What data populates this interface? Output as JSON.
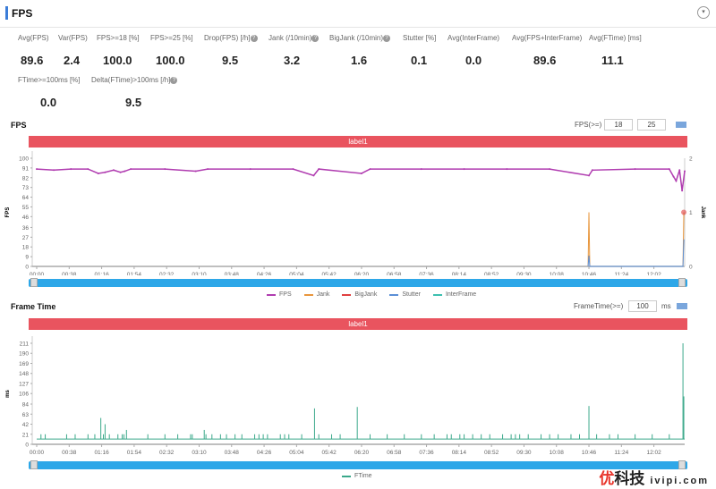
{
  "header": {
    "title": "FPS"
  },
  "stats": [
    {
      "label": "Avg(FPS)",
      "value": "89.6"
    },
    {
      "label": "Var(FPS)",
      "value": "2.4"
    },
    {
      "label": "FPS>=18 [%]",
      "value": "100.0"
    },
    {
      "label": "FPS>=25 [%]",
      "value": "100.0"
    },
    {
      "label": "Drop(FPS) [/h]",
      "value": "9.5",
      "help": true
    },
    {
      "label": "Jank (/10min)",
      "value": "3.2",
      "help": true
    },
    {
      "label": "BigJank (/10min)",
      "value": "1.6",
      "help": true
    },
    {
      "label": "Stutter [%]",
      "value": "0.1"
    },
    {
      "label": "Avg(InterFrame)",
      "value": "0.0"
    },
    {
      "label": "Avg(FPS+InterFrame)",
      "value": "89.6"
    },
    {
      "label": "Avg(FTime) [ms]",
      "value": "11.1"
    },
    {
      "label": "FTime>=100ms [%]",
      "value": "0.0"
    },
    {
      "label": "Delta(FTime)>100ms [/h]",
      "value": "9.5",
      "help": true
    }
  ],
  "fps_panel": {
    "title": "FPS",
    "threshold_label": "FPS(>=)",
    "threshold1": "18",
    "threshold2": "25",
    "band_label": "label1"
  },
  "ft_panel": {
    "title": "Frame Time",
    "threshold_label": "FrameTime(>=)",
    "threshold": "100",
    "unit": "ms",
    "band_label": "label1"
  },
  "watermark": {
    "cn": "优科技",
    "en": "ivipi.com"
  },
  "colors": {
    "fps": "#b03cb0",
    "jank": "#e8963c",
    "bigjank": "#e04040",
    "stutter": "#5b8fd6",
    "interframe": "#3cc0b0",
    "ftime": "#3aa88a",
    "band": "#e9545f",
    "slider": "#2ea7e8"
  },
  "chart_data": [
    {
      "type": "line",
      "ylabel": "FPS",
      "y2label": "Jank",
      "ylim": [
        0,
        100
      ],
      "y2lim": [
        0,
        2
      ],
      "yticks": [
        0,
        9,
        18,
        27,
        36,
        46,
        55,
        64,
        73,
        82,
        91,
        100
      ],
      "y2ticks": [
        0,
        1,
        2
      ],
      "xticks": [
        "00:00",
        "00:38",
        "01:16",
        "01:54",
        "02:32",
        "03:10",
        "03:48",
        "04:26",
        "05:04",
        "05:42",
        "06:20",
        "06:58",
        "07:36",
        "08:14",
        "08:52",
        "09:30",
        "10:08",
        "10:46",
        "11:24",
        "12:02"
      ],
      "xrange_sec": [
        0,
        758
      ],
      "series": [
        {
          "name": "FPS",
          "points": [
            [
              0,
              90
            ],
            [
              20,
              89
            ],
            [
              40,
              90
            ],
            [
              60,
              90
            ],
            [
              72,
              86
            ],
            [
              80,
              87
            ],
            [
              90,
              89
            ],
            [
              98,
              87
            ],
            [
              103,
              88
            ],
            [
              110,
              90
            ],
            [
              150,
              90
            ],
            [
              186,
              88
            ],
            [
              200,
              90
            ],
            [
              250,
              90
            ],
            [
              300,
              90
            ],
            [
              324,
              84
            ],
            [
              330,
              90
            ],
            [
              380,
              86
            ],
            [
              390,
              90
            ],
            [
              450,
              90
            ],
            [
              500,
              90
            ],
            [
              550,
              90
            ],
            [
              600,
              90
            ],
            [
              646,
              84
            ],
            [
              650,
              89
            ],
            [
              700,
              90
            ],
            [
              740,
              90
            ],
            [
              745,
              83
            ],
            [
              748,
              79
            ],
            [
              752,
              89
            ],
            [
              755,
              70
            ],
            [
              758,
              88
            ]
          ]
        },
        {
          "name": "Jank",
          "points": [
            [
              645,
              0
            ],
            [
              646,
              1
            ],
            [
              647,
              0
            ],
            [
              756,
              0
            ],
            [
              757,
              1
            ]
          ]
        },
        {
          "name": "BigJank",
          "points": []
        },
        {
          "name": "Stutter",
          "points": [
            [
              645,
              0
            ],
            [
              646,
              0.2
            ],
            [
              647,
              0
            ],
            [
              756,
              0
            ],
            [
              757,
              0.5
            ]
          ]
        },
        {
          "name": "InterFrame",
          "points": []
        }
      ]
    },
    {
      "type": "bar",
      "ylabel": "ms",
      "ylim": [
        0,
        211
      ],
      "yticks": [
        0,
        21,
        42,
        63,
        84,
        106,
        127,
        148,
        169,
        190,
        211
      ],
      "xticks": [
        "00:00",
        "00:38",
        "01:16",
        "01:54",
        "02:32",
        "03:10",
        "03:48",
        "04:26",
        "05:04",
        "05:42",
        "06:20",
        "06:58",
        "07:36",
        "08:14",
        "08:52",
        "09:30",
        "10:08",
        "10:46",
        "11:24",
        "12:02"
      ],
      "xrange_sec": [
        0,
        758
      ],
      "baseline": 11,
      "series": [
        {
          "name": "FTime",
          "points": [
            [
              5,
              21
            ],
            [
              10,
              21
            ],
            [
              35,
              21
            ],
            [
              45,
              21
            ],
            [
              60,
              21
            ],
            [
              68,
              21
            ],
            [
              75,
              55
            ],
            [
              78,
              21
            ],
            [
              80,
              42
            ],
            [
              85,
              21
            ],
            [
              95,
              21
            ],
            [
              100,
              21
            ],
            [
              102,
              21
            ],
            [
              105,
              30
            ],
            [
              130,
              21
            ],
            [
              150,
              21
            ],
            [
              165,
              21
            ],
            [
              180,
              21
            ],
            [
              182,
              21
            ],
            [
              196,
              30
            ],
            [
              198,
              21
            ],
            [
              205,
              21
            ],
            [
              215,
              21
            ],
            [
              222,
              21
            ],
            [
              232,
              21
            ],
            [
              240,
              21
            ],
            [
              255,
              21
            ],
            [
              260,
              21
            ],
            [
              265,
              21
            ],
            [
              270,
              21
            ],
            [
              285,
              21
            ],
            [
              290,
              21
            ],
            [
              295,
              21
            ],
            [
              310,
              21
            ],
            [
              325,
              75
            ],
            [
              330,
              21
            ],
            [
              345,
              21
            ],
            [
              355,
              21
            ],
            [
              375,
              78
            ],
            [
              390,
              21
            ],
            [
              410,
              21
            ],
            [
              430,
              21
            ],
            [
              450,
              21
            ],
            [
              465,
              21
            ],
            [
              480,
              21
            ],
            [
              485,
              21
            ],
            [
              495,
              21
            ],
            [
              500,
              21
            ],
            [
              510,
              21
            ],
            [
              520,
              21
            ],
            [
              530,
              21
            ],
            [
              545,
              21
            ],
            [
              555,
              21
            ],
            [
              560,
              21
            ],
            [
              565,
              21
            ],
            [
              575,
              21
            ],
            [
              590,
              21
            ],
            [
              600,
              21
            ],
            [
              610,
              21
            ],
            [
              625,
              21
            ],
            [
              635,
              21
            ],
            [
              646,
              80
            ],
            [
              655,
              21
            ],
            [
              670,
              21
            ],
            [
              680,
              21
            ],
            [
              700,
              21
            ],
            [
              720,
              21
            ],
            [
              740,
              21
            ],
            [
              756,
              211
            ],
            [
              757,
              100
            ]
          ]
        }
      ]
    }
  ]
}
